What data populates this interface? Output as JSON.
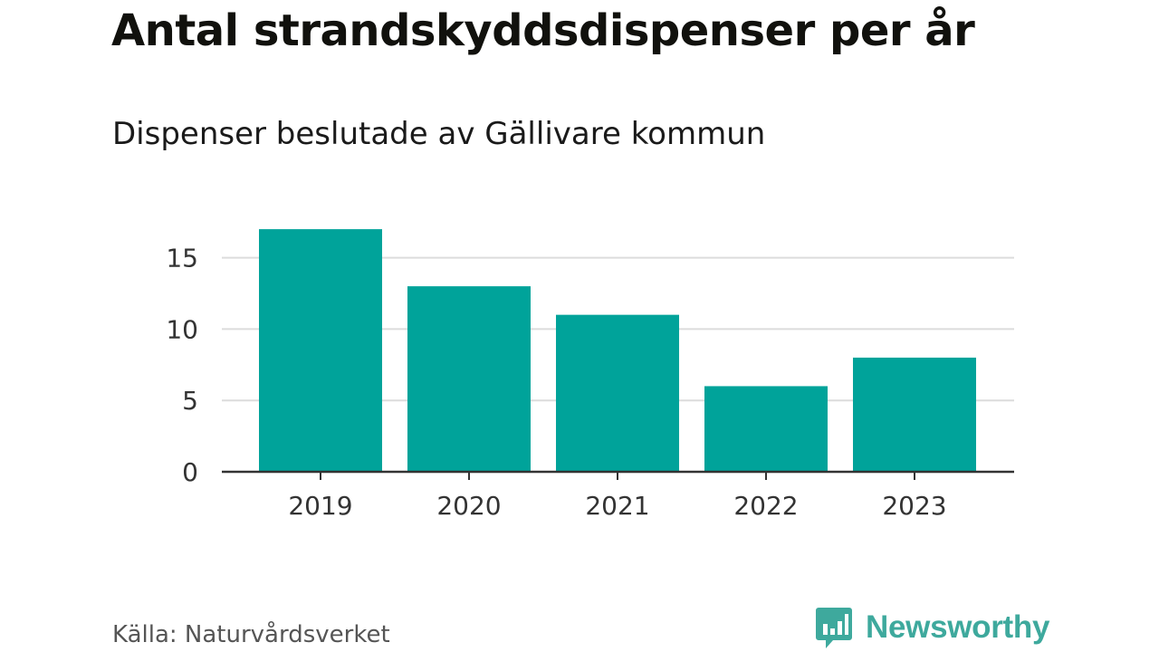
{
  "title": "Antal strandskyddsdispenser per år",
  "subtitle": "Dispenser beslutade av Gällivare kommun",
  "source": "Källa: Naturvårdsverket",
  "brand": {
    "name": "Newsworthy",
    "logo_icon": "bar-chart-speech-bubble-icon",
    "color": "#3ea99d"
  },
  "colors": {
    "bar": "#00a39a",
    "grid": "#dcdcdc",
    "axis": "#333333",
    "tick_text": "#333333"
  },
  "chart_data": {
    "type": "bar",
    "title": "Antal strandskyddsdispenser per år",
    "subtitle": "Dispenser beslutade av Gällivare kommun",
    "categories": [
      "2019",
      "2020",
      "2021",
      "2022",
      "2023"
    ],
    "values": [
      17,
      13,
      11,
      6,
      8
    ],
    "xlabel": "",
    "ylabel": "",
    "ylim": [
      0,
      18
    ],
    "yticks": [
      0,
      5,
      10,
      15
    ],
    "ytick_labels": [
      "0",
      "5",
      "10",
      "15"
    ],
    "grid": true,
    "legend": "none"
  }
}
